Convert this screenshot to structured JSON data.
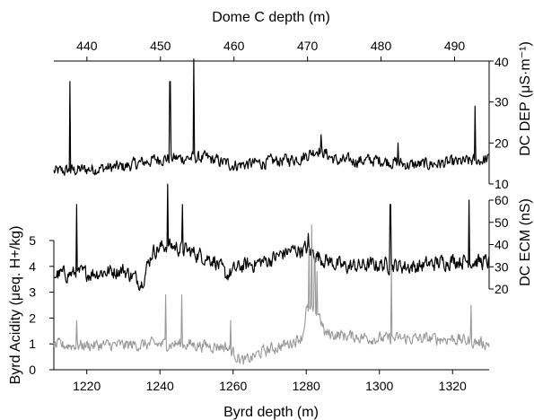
{
  "chart_data": {
    "type": "line",
    "axes": {
      "bottom": {
        "label": "Byrd depth (m)",
        "ticks": [
          1220,
          1240,
          1260,
          1280,
          1300,
          1320
        ],
        "range": [
          1211,
          1330
        ]
      },
      "top": {
        "label": "Dome C depth (m)",
        "ticks": [
          440,
          450,
          460,
          470,
          480,
          490
        ],
        "range": [
          435.5,
          494.7
        ]
      },
      "left": {
        "label": "Byrd Acidity (μeq. H+/kg)",
        "ticks": [
          0,
          1,
          2,
          3,
          4,
          5
        ],
        "range": [
          0,
          5
        ]
      },
      "right_upper": {
        "label": "DC DEP (μS·m⁻¹)",
        "ticks": [
          10,
          20,
          30,
          40
        ],
        "range": [
          10,
          40
        ]
      },
      "right_lower": {
        "label": "DC ECM (nS)",
        "ticks": [
          20,
          30,
          40,
          50,
          60
        ],
        "range": [
          20,
          60
        ]
      }
    },
    "colors": {
      "dep": "#000000",
      "ecm": "#000000",
      "acidity": "#999999"
    },
    "series": [
      {
        "axis": "right_upper",
        "x_axis": "top",
        "color": "#000000",
        "baseline": [
          [
            435.5,
            13.0
          ],
          [
            445.0,
            14.2
          ],
          [
            450.0,
            16.2
          ],
          [
            456.0,
            16.4
          ],
          [
            460.0,
            14.6
          ],
          [
            464.0,
            15.2
          ],
          [
            469.0,
            16.3
          ],
          [
            471.5,
            18.5
          ],
          [
            474.0,
            15.6
          ],
          [
            480.0,
            15.8
          ],
          [
            484.0,
            14.6
          ],
          [
            490.0,
            15.2
          ],
          [
            494.7,
            16.0
          ]
        ],
        "noise": 1.3,
        "spikes": [
          [
            437.7,
            35.0
          ],
          [
            451.3,
            35.0
          ],
          [
            454.5,
            40.5
          ],
          [
            471.8,
            22.0
          ],
          [
            482.3,
            20.0
          ],
          [
            492.8,
            29.0
          ]
        ]
      },
      {
        "axis": "right_lower",
        "x_axis": "bottom",
        "color": "#000000",
        "baseline": [
          [
            1211,
            26.5
          ],
          [
            1220,
            27.0
          ],
          [
            1230,
            28.5
          ],
          [
            1235,
            23.0
          ],
          [
            1238,
            37.0
          ],
          [
            1242,
            40.0
          ],
          [
            1248,
            37.0
          ],
          [
            1255,
            33.0
          ],
          [
            1258,
            26.0
          ],
          [
            1262,
            30.0
          ],
          [
            1270,
            33.0
          ],
          [
            1275,
            37.0
          ],
          [
            1280,
            38.0
          ],
          [
            1284,
            34.0
          ],
          [
            1290,
            30.0
          ],
          [
            1300,
            31.0
          ],
          [
            1310,
            30.0
          ],
          [
            1320,
            33.0
          ],
          [
            1330,
            32.0
          ]
        ],
        "noise": 3.0,
        "spikes": [
          [
            1217.3,
            58.0
          ],
          [
            1242.2,
            70.0
          ],
          [
            1246.2,
            58.0
          ],
          [
            1280.5,
            45.0
          ],
          [
            1303.0,
            58.0
          ],
          [
            1324.5,
            60.0
          ]
        ]
      },
      {
        "axis": "left",
        "x_axis": "bottom",
        "color": "#999999",
        "baseline": [
          [
            1211,
            0.95
          ],
          [
            1230,
            0.95
          ],
          [
            1245,
            1.0
          ],
          [
            1258,
            0.9
          ],
          [
            1263,
            0.3
          ],
          [
            1268,
            0.7
          ],
          [
            1275,
            1.0
          ],
          [
            1279,
            1.3
          ],
          [
            1280,
            2.3
          ],
          [
            1283.5,
            2.2
          ],
          [
            1285,
            1.4
          ],
          [
            1300,
            1.2
          ],
          [
            1320,
            1.2
          ],
          [
            1330,
            1.0
          ]
        ],
        "noise": 0.2,
        "spikes": [
          [
            1217.3,
            1.9
          ],
          [
            1241.6,
            2.9
          ],
          [
            1246.0,
            2.9
          ],
          [
            1259.3,
            1.9
          ],
          [
            1280.7,
            4.7
          ],
          [
            1281.5,
            5.6
          ],
          [
            1282.3,
            4.3
          ],
          [
            1283.0,
            3.8
          ],
          [
            1303.3,
            4.0
          ],
          [
            1325.0,
            2.5
          ]
        ]
      }
    ]
  }
}
